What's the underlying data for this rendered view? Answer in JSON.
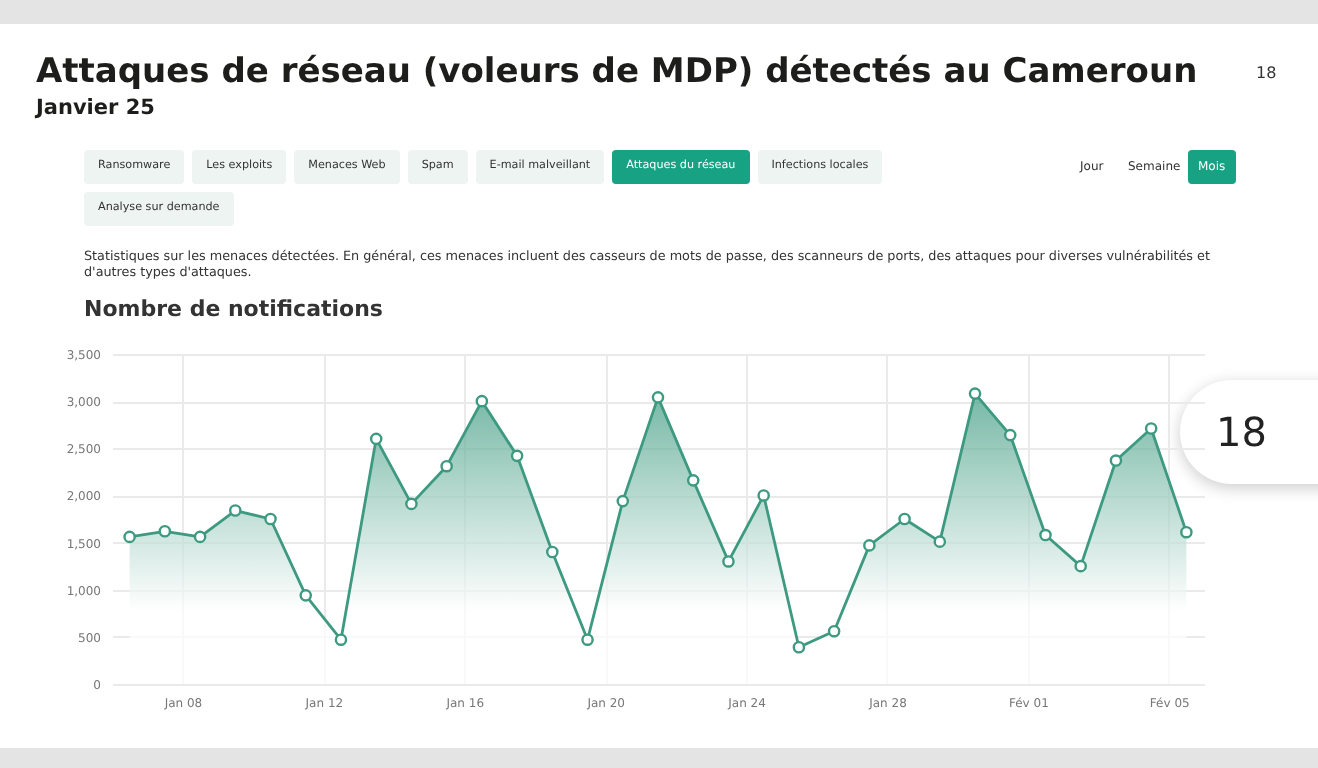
{
  "chart_data": {
    "type": "area",
    "title": "Attaques de réseau (voleurs de MDP) détectés au Cameroun",
    "subtitle": "Janvier 25",
    "x": [
      "--01-06T12:00",
      "--01-07T12:00",
      "--01-08T12:00",
      "--01-09T12:00",
      "--01-10T12:00",
      "--01-11T12:00",
      "--01-12T12:00",
      "--01-13T12:00",
      "--01-14T12:00",
      "--01-15T12:00",
      "--01-16T12:00",
      "--01-17T12:00",
      "--01-18T12:00",
      "--01-19T12:00",
      "--01-20T12:00",
      "--01-21T12:00",
      "--01-22T12:00",
      "--01-23T12:00",
      "--01-24T12:00",
      "--01-25T12:00",
      "--01-26T12:00",
      "--01-27T12:00",
      "--01-28T12:00",
      "--01-29T12:00",
      "--01-30T12:00",
      "--01-31T12:00",
      "--02-01T12:00",
      "--02-02T12:00",
      "--02-03T12:00",
      "--02-04T12:00",
      "--02-05T12:00"
    ],
    "series": [
      {
        "color": "#3d9a80",
        "values": [
          1560,
          1620,
          1560,
          1840,
          1750,
          940,
          470,
          2600,
          1910,
          2310,
          3000,
          2420,
          1400,
          470,
          1940,
          3040,
          2160,
          1300,
          2000,
          390,
          560,
          1470,
          1750,
          1510,
          3080,
          2640,
          1580,
          1250,
          2370,
          2710,
          1610
        ]
      }
    ],
    "xlim": [
      "--01-06",
      "--02-06"
    ],
    "xticks": [
      {
        "value": "--01-08",
        "label": "Jan 08"
      },
      {
        "value": "--01-12",
        "label": "Jan 12"
      },
      {
        "value": "--01-16",
        "label": "Jan 16"
      },
      {
        "value": "--01-20",
        "label": "Jan 20"
      },
      {
        "value": "--01-24",
        "label": "Jan 24"
      },
      {
        "value": "--01-28",
        "label": "Jan 28"
      },
      {
        "value": "--02-01",
        "label": "Fév 01"
      },
      {
        "value": "--02-05",
        "label": "Fév 05"
      }
    ],
    "ylim": [
      0,
      3500
    ],
    "yticks": [
      {
        "value": 0,
        "label": "0"
      },
      {
        "value": 500,
        "label": "500"
      },
      {
        "value": 1000,
        "label": "1,000"
      },
      {
        "value": 1500,
        "label": "1,500"
      },
      {
        "value": 2000,
        "label": "2,000"
      },
      {
        "value": 2500,
        "label": "2,500"
      },
      {
        "value": 3000,
        "label": "3,000"
      },
      {
        "value": 3500,
        "label": "3,500"
      }
    ],
    "grid": true,
    "marker": "circle",
    "annotations": [
      "18",
      "Ransomware",
      "Les exploits",
      "Menaces Web",
      "Spam",
      "E-mail malveillant",
      "Attaques du réseau",
      "Infections locales",
      "Analyse sur demande",
      "Jour",
      "Semaine",
      "Mois",
      "Statistiques sur les menaces détectées. En général, ces menaces incluent des casseurs de mots de passe, des scanneurs de ports, des attaques pour diverses vulnérabilités et d'autres types d'attaques.",
      "Nombre de notifications",
      "18"
    ]
  }
}
